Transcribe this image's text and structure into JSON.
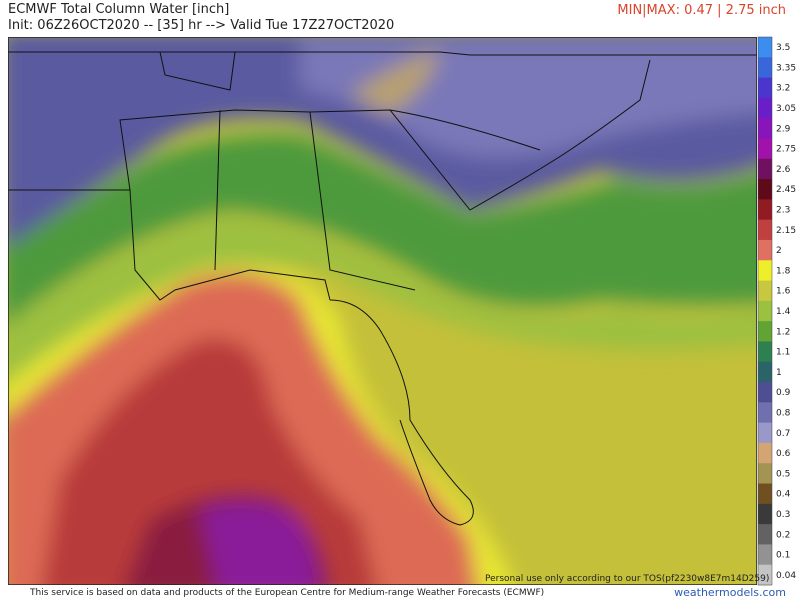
{
  "header": {
    "title": "ECMWF Total Column Water [inch]",
    "init": "Init: 06Z26OCT2020 -- [35] hr --> Valid Tue 17Z27OCT2020",
    "minmax": "MIN|MAX: 0.47 | 2.75 inch"
  },
  "colorbar": {
    "levels": [
      {
        "label": "3.5",
        "color": "#3b8ef0"
      },
      {
        "label": "3.35",
        "color": "#3a66dc"
      },
      {
        "label": "3.2",
        "color": "#4a36cc"
      },
      {
        "label": "3.05",
        "color": "#6a1ec8"
      },
      {
        "label": "2.9",
        "color": "#8814bc"
      },
      {
        "label": "2.75",
        "color": "#a012aa"
      },
      {
        "label": "2.6",
        "color": "#701060"
      },
      {
        "label": "2.45",
        "color": "#5e0a18"
      },
      {
        "label": "2.3",
        "color": "#921a22"
      },
      {
        "label": "2.15",
        "color": "#c04040"
      },
      {
        "label": "2",
        "color": "#e07060"
      },
      {
        "label": "1.8",
        "color": "#eeee2a"
      },
      {
        "label": "1.6",
        "color": "#c8c840"
      },
      {
        "label": "1.4",
        "color": "#9cc040"
      },
      {
        "label": "1.2",
        "color": "#62a434"
      },
      {
        "label": "1.1",
        "color": "#2f8050"
      },
      {
        "label": "1",
        "color": "#2a6468"
      },
      {
        "label": "0.9",
        "color": "#4e4e92"
      },
      {
        "label": "0.8",
        "color": "#7070b0"
      },
      {
        "label": "0.7",
        "color": "#9a98c8"
      },
      {
        "label": "0.6",
        "color": "#d4a472"
      },
      {
        "label": "0.5",
        "color": "#a49452"
      },
      {
        "label": "0.4",
        "color": "#705020"
      },
      {
        "label": "0.3",
        "color": "#3a3a3a"
      },
      {
        "label": "0.2",
        "color": "#626262"
      },
      {
        "label": "0.1",
        "color": "#929292"
      },
      {
        "label": "0.04",
        "color": "#c4c4c4"
      }
    ]
  },
  "watermark": "Personal use only according to our TOS(pf2230w8E7m14D259)",
  "footer": {
    "credit": "This service is based on data and products of the European Centre for Medium-range Weather Forecasts (ECMWF)",
    "site": "weathermodels.com"
  }
}
